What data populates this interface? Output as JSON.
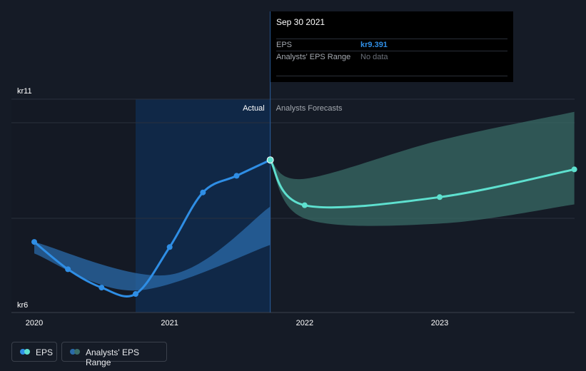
{
  "chart_data": {
    "type": "line",
    "y_currency_prefix": "kr",
    "y_tick_labels": [
      "kr11",
      "kr6"
    ],
    "ylim": [
      6,
      11
    ],
    "x_tick_labels": [
      "2020",
      "2021",
      "2022",
      "2023"
    ],
    "divider_label_left": "Actual",
    "divider_label_right": "Analysts Forecasts",
    "divider_date": "2021-09-30",
    "series": [
      {
        "name": "EPS",
        "color": "#2f8ee5",
        "points": [
          {
            "x": "2020-01-01",
            "y": 7.47
          },
          {
            "x": "2020-04-01",
            "y": 6.83
          },
          {
            "x": "2020-07-01",
            "y": 6.4
          },
          {
            "x": "2020-10-01",
            "y": 6.25
          },
          {
            "x": "2021-01-01",
            "y": 7.35
          },
          {
            "x": "2021-04-01",
            "y": 8.63
          },
          {
            "x": "2021-07-01",
            "y": 9.02
          },
          {
            "x": "2021-09-30",
            "y": 9.391
          }
        ]
      },
      {
        "name": "EPS forecast",
        "color": "#5ee0cf",
        "points": [
          {
            "x": "2021-09-30",
            "y": 9.391
          },
          {
            "x": "2022-01-01",
            "y": 8.33
          },
          {
            "x": "2023-01-01",
            "y": 8.52
          },
          {
            "x": "2023-12-31",
            "y": 9.17
          }
        ]
      }
    ],
    "ranges": [
      {
        "name": "Analysts' EPS Range",
        "color": "#2a6aa8",
        "upper": [
          {
            "x": "2020-01-01",
            "y": 7.47
          },
          {
            "x": "2021-01-01",
            "y": 6.7
          },
          {
            "x": "2021-09-30",
            "y": 8.3
          }
        ],
        "lower": [
          {
            "x": "2020-01-01",
            "y": 7.2
          },
          {
            "x": "2020-10-01",
            "y": 6.33
          },
          {
            "x": "2021-09-30",
            "y": 7.4
          }
        ]
      },
      {
        "name": "Analysts' EPS Range forecast",
        "color": "#3b6f6a",
        "upper": [
          {
            "x": "2021-09-30",
            "y": 9.391
          },
          {
            "x": "2022-01-01",
            "y": 8.95
          },
          {
            "x": "2023-01-01",
            "y": 9.85
          },
          {
            "x": "2023-12-31",
            "y": 10.52
          }
        ],
        "lower": [
          {
            "x": "2021-09-30",
            "y": 9.391
          },
          {
            "x": "2022-01-01",
            "y": 8.02
          },
          {
            "x": "2023-01-01",
            "y": 7.9
          },
          {
            "x": "2023-12-31",
            "y": 8.35
          }
        ]
      }
    ],
    "highlight_marker": {
      "x": "2021-09-30",
      "y": 9.391
    }
  },
  "tooltip": {
    "date": "Sep 30 2021",
    "eps_label": "EPS",
    "eps_value": "kr9.391",
    "range_label": "Analysts' EPS Range",
    "range_value": "No data"
  },
  "legend": {
    "eps_label": "EPS",
    "range_label": "Analysts' EPS Range"
  },
  "colors": {
    "background": "#151b26",
    "eps": "#2f8ee5",
    "forecast": "#5ee0cf",
    "range_past": "#2a6aa8",
    "range_forecast": "#3b6f6a"
  }
}
